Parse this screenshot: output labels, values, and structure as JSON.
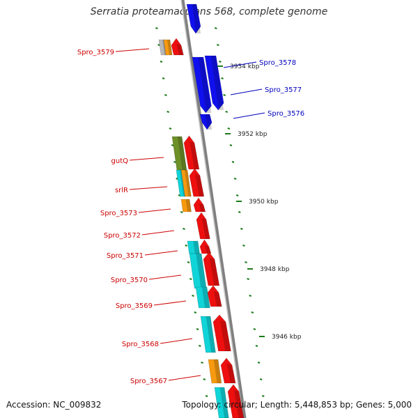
{
  "title": "Serratia proteamaculans 568, complete genome",
  "accession": "Accession: NC_009832",
  "summary": "Topology: circular; Length: 5,448,853 bp; Genes: 5,000",
  "colors": {
    "blue": "#1010ee",
    "red": "#ee0f0f",
    "cyan": "#10d4d8",
    "orange": "#f79a10",
    "olive": "#6e9028",
    "gray": "#b8b8b8",
    "green_tick": "#1a7a1a",
    "label_red": "#cc0000",
    "label_blue": "#0000bb"
  },
  "kbp_ticks": [
    "3954 kbp",
    "3952 kbp",
    "3950 kbp",
    "3948 kbp",
    "3946 kbp"
  ],
  "gene_labels_right": [
    "Spro_3578",
    "Spro_3577",
    "Spro_3576"
  ],
  "gene_labels_left": [
    "Spro_3579",
    "gutQ",
    "srlR",
    "Spro_3573",
    "Spro_3572",
    "Spro_3571",
    "Spro_3570",
    "Spro_3569",
    "Spro_3568",
    "Spro_3567"
  ]
}
